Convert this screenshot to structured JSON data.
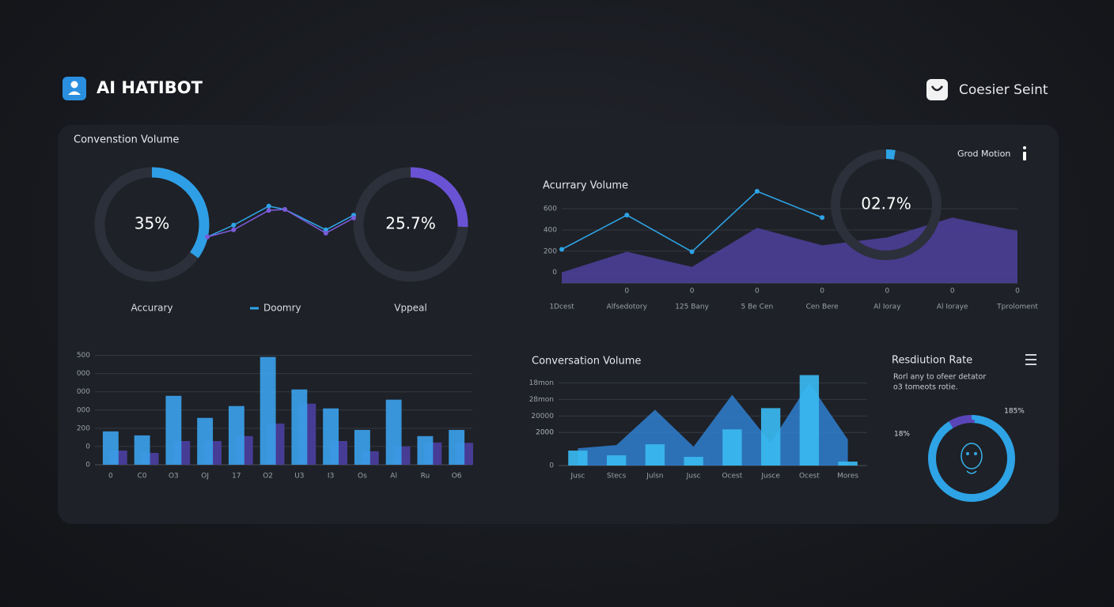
{
  "header": {
    "title": "AI HATIBOT",
    "user": "Coesier Seint",
    "status": "Grod Motion"
  },
  "chart_data": [
    {
      "type": "gauge",
      "title": "Convenstion Volume",
      "categories": [
        "Accurary",
        "Vppeal"
      ],
      "values": [
        35,
        25.7
      ],
      "value_labels": [
        "35%",
        "25.7%"
      ],
      "colors": [
        "#2e9fe6",
        "#6a52d4"
      ]
    },
    {
      "type": "line",
      "x": [
        0,
        18,
        42,
        53,
        81,
        100
      ],
      "xlim": [
        0,
        100
      ],
      "ylim": [
        0,
        100
      ],
      "series": [
        {
          "name": "Doomry",
          "color": "#2ea3e6",
          "values": [
            17,
            42,
            82,
            75,
            32,
            63
          ]
        },
        {
          "color": "#7a5ad8",
          "values": [
            17,
            32,
            73,
            75,
            25,
            57
          ]
        }
      ]
    },
    {
      "type": "line",
      "title": "Acurrary Volume",
      "categories": [
        "1Dcest",
        "Alfsedotory",
        "125 Bany",
        "5 Be Cen",
        "Cen Bere",
        "Al Ioray",
        "Al Ioraye",
        "Tproloment"
      ],
      "subcategories": [
        null,
        "0",
        "0",
        "0",
        "0",
        "0",
        "0",
        "0"
      ],
      "ylim": [
        -100,
        780
      ],
      "yticks": [
        0,
        200,
        400,
        600
      ],
      "grid": true,
      "series": [
        {
          "style": "area",
          "color": "#4f3f9e",
          "values": [
            0,
            195,
            52,
            420,
            255,
            330,
            517,
            390
          ]
        },
        {
          "style": "line",
          "color": "#2ea3e6",
          "values": [
            217,
            540,
            195,
            765,
            517,
            null,
            null,
            null
          ]
        }
      ]
    },
    {
      "type": "gauge",
      "values": [
        2.7
      ],
      "value_labels": [
        "02.7%"
      ],
      "colors": [
        "#2ea3e6"
      ]
    },
    {
      "type": "bar",
      "categories": [
        "0",
        "C0",
        "O3",
        "OJ",
        "17",
        "O2",
        "U3",
        "I3",
        "Os",
        "Al",
        "Ru",
        "O6"
      ],
      "ylim": [
        0,
        620
      ],
      "yticks": [
        0,
        {
          "value": 100,
          "label": "0"
        },
        200,
        {
          "value": 300,
          "label": "000"
        },
        {
          "value": 400,
          "label": "000"
        },
        {
          "value": 500,
          "label": "000"
        },
        {
          "value": 600,
          "label": "500"
        }
      ],
      "grid": true,
      "series": [
        {
          "color": "#4b3f9e",
          "values": [
            78,
            65,
            130,
            130,
            157,
            226,
            335,
            130,
            74,
            100,
            122,
            120
          ]
        },
        {
          "color": "#3b9fe8",
          "values": [
            183,
            161,
            378,
            257,
            322,
            591,
            413,
            309,
            191,
            357,
            157,
            191
          ]
        }
      ]
    },
    {
      "type": "bar",
      "title": "Conversation Volume",
      "categories": [
        "Jusc",
        "Stecs",
        "Julsn",
        "Jusc",
        "Ocest",
        "Jusce",
        "Ocest",
        "Mores"
      ],
      "ylim": [
        0,
        5600
      ],
      "yticks": [
        0,
        2000,
        {
          "value": 2000,
          "label": "2000"
        },
        {
          "value": 3000,
          "label": "20000"
        },
        {
          "value": 4000,
          "label": "28mon"
        },
        {
          "value": 5000,
          "label": "18mon"
        }
      ],
      "grid": true,
      "series": [
        {
          "style": "area",
          "color": "#2f7fd0",
          "values": [
            1048,
            1238,
            3381,
            1143,
            4286,
            1381,
            5000,
            1571
          ]
        },
        {
          "color": "#3ab8f0",
          "values": [
            905,
            619,
            1286,
            524,
            2190,
            3476,
            5476,
            238
          ]
        }
      ]
    },
    {
      "type": "ring",
      "title": "Resdiution Rate",
      "subtitle": [
        "Rorl any to ofeer detator",
        "o3 tomeots rotie."
      ],
      "values": [
        185,
        18
      ],
      "value_labels": [
        "185%",
        "18%"
      ],
      "colors": [
        "#2ea3e6",
        "#5a45b8"
      ]
    }
  ]
}
